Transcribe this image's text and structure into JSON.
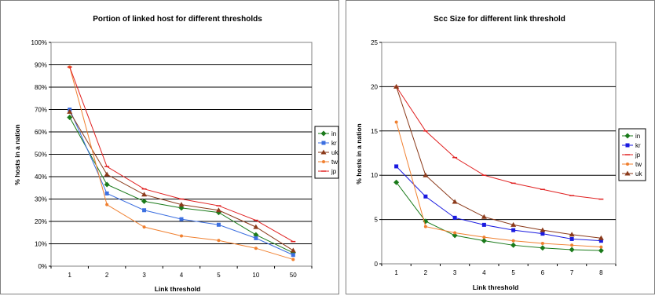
{
  "chart_data": [
    {
      "type": "line",
      "title": "Portion of linked host for different thresholds",
      "xlabel": "Link threshold",
      "ylabel": "% hosts in a nation",
      "categories": [
        "1",
        "2",
        "3",
        "4",
        "5",
        "10",
        "50"
      ],
      "yticks": [
        "0%",
        "10%",
        "20%",
        "30%",
        "40%",
        "50%",
        "60%",
        "70%",
        "80%",
        "90%",
        "100%"
      ],
      "ylim": [
        0,
        100
      ],
      "grid": "horizontal",
      "legend": "right",
      "series": [
        {
          "name": "in",
          "color": "#1a7a1a",
          "marker": "diamond",
          "values": [
            66.5,
            36.5,
            29,
            26,
            24,
            14,
            6
          ]
        },
        {
          "name": "kr",
          "color": "#3c6fe0",
          "marker": "square",
          "values": [
            70,
            32.5,
            25,
            21,
            18.5,
            12.5,
            5
          ]
        },
        {
          "name": "uk",
          "color": "#8b3a1a",
          "marker": "triangle",
          "values": [
            69,
            41,
            32,
            27.5,
            25,
            17.5,
            7
          ]
        },
        {
          "name": "tw",
          "color": "#f08030",
          "marker": "dot",
          "values": [
            89,
            27.5,
            17.5,
            13.5,
            11.5,
            8,
            3
          ]
        },
        {
          "name": "jp",
          "color": "#e02020",
          "marker": "dash",
          "values": [
            89,
            44.5,
            34.5,
            30,
            27,
            20.5,
            11
          ]
        }
      ]
    },
    {
      "type": "line",
      "title": "Scc Size for different link threshold",
      "xlabel": "Link threshold",
      "ylabel": "% hosts in a nation",
      "categories": [
        "1",
        "2",
        "3",
        "4",
        "5",
        "6",
        "7",
        "8"
      ],
      "yticks": [
        "0",
        "5",
        "10",
        "15",
        "20",
        "25"
      ],
      "ylim": [
        0,
        25
      ],
      "grid": "horizontal",
      "legend": "right",
      "series": [
        {
          "name": "in",
          "color": "#1a7a1a",
          "marker": "diamond",
          "values": [
            9.2,
            4.8,
            3.2,
            2.6,
            2.1,
            1.8,
            1.6,
            1.5
          ]
        },
        {
          "name": "kr",
          "color": "#1a1ae0",
          "marker": "square",
          "values": [
            11,
            7.6,
            5.2,
            4.4,
            3.8,
            3.4,
            2.8,
            2.6
          ]
        },
        {
          "name": "jp",
          "color": "#e02020",
          "marker": "dash",
          "values": [
            20,
            15,
            12,
            10,
            9.1,
            8.4,
            7.7,
            7.3
          ]
        },
        {
          "name": "tw",
          "color": "#f08030",
          "marker": "dot",
          "values": [
            16,
            4.2,
            3.5,
            3,
            2.6,
            2.3,
            2.1,
            1.9
          ]
        },
        {
          "name": "uk",
          "color": "#8b3a1a",
          "marker": "triangle",
          "values": [
            20,
            10,
            7,
            5.3,
            4.4,
            3.8,
            3.3,
            2.9
          ]
        }
      ]
    }
  ]
}
